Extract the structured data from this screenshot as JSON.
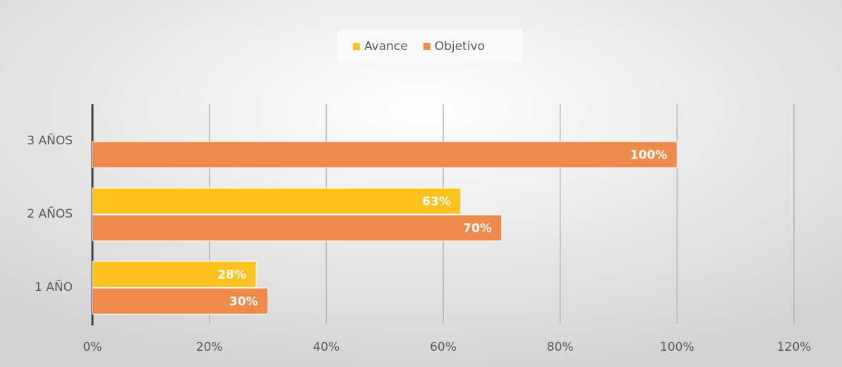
{
  "chart_data": {
    "type": "bar",
    "orientation": "horizontal",
    "categories": [
      "1 AÑO",
      "2 AÑOS",
      "3 AÑOS"
    ],
    "series": [
      {
        "name": "Avance",
        "color": "#fdc21e",
        "values": [
          28,
          63,
          null
        ],
        "value_labels": [
          "28%",
          "63%",
          null
        ]
      },
      {
        "name": "Objetivo",
        "color": "#ee8a4b",
        "values": [
          30,
          70,
          100
        ],
        "value_labels": [
          "30%",
          "70%",
          "100%"
        ]
      }
    ],
    "xlim": [
      0,
      120
    ],
    "xticks": [
      {
        "value": 0,
        "label": "0%"
      },
      {
        "value": 20,
        "label": "20%"
      },
      {
        "value": 40,
        "label": "40%"
      },
      {
        "value": 60,
        "label": "60%"
      },
      {
        "value": 80,
        "label": "80%"
      },
      {
        "value": 100,
        "label": "100%"
      },
      {
        "value": 120,
        "label": "120%"
      }
    ],
    "grid": true,
    "legend": "top"
  }
}
